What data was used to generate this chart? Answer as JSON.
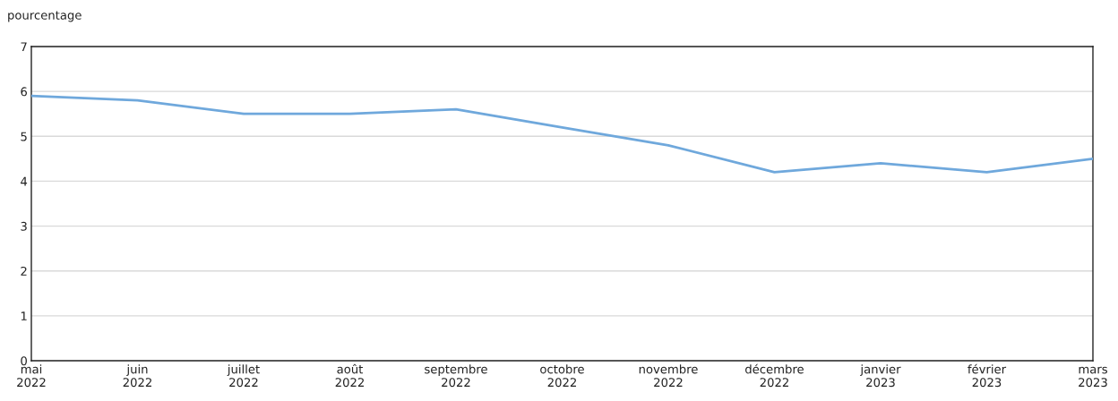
{
  "chart_data": {
    "type": "line",
    "ylabel": "pourcentage",
    "categories": [
      "mai\n2022",
      "juin\n2022",
      "juillet\n2022",
      "août\n2022",
      "septembre\n2022",
      "octobre\n2022",
      "novembre\n2022",
      "décembre\n2022",
      "janvier\n2023",
      "février\n2023",
      "mars\n2023"
    ],
    "series": [
      {
        "color": "#6fa8dc",
        "values": [
          5.9,
          5.8,
          5.5,
          5.5,
          5.6,
          5.2,
          4.8,
          4.2,
          4.4,
          4.2,
          4.5
        ]
      }
    ],
    "ylim": [
      0,
      7
    ],
    "yticks": [
      0,
      1,
      2,
      3,
      4,
      5,
      6,
      7
    ],
    "grid": "y",
    "legend": false
  }
}
